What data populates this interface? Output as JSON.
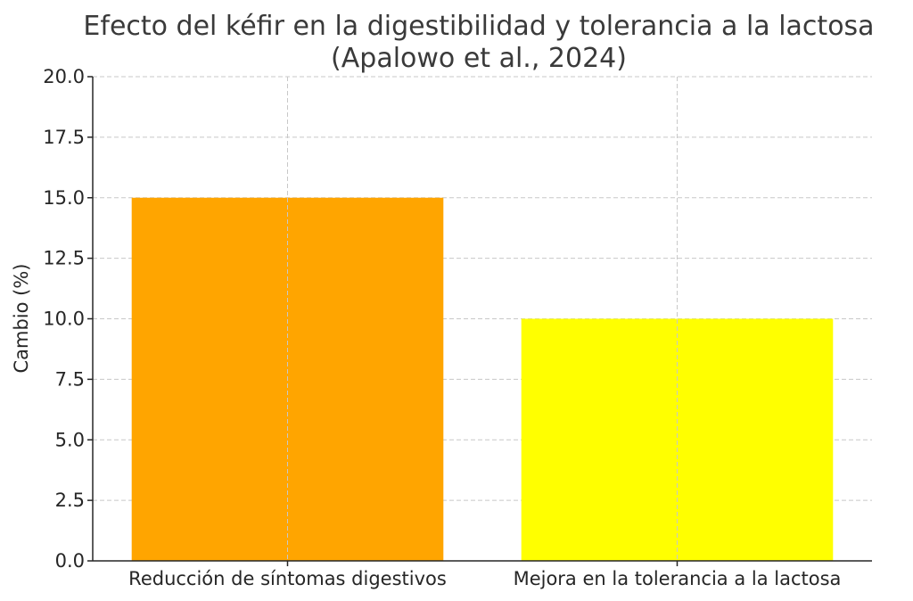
{
  "chart_data": {
    "type": "bar",
    "title": "Efecto del kéfir en la digestibilidad y tolerancia a la lactosa",
    "subtitle": "(Apalowo et al., 2024)",
    "xlabel": "",
    "ylabel": "Cambio (%)",
    "categories": [
      "Reducción de síntomas digestivos",
      "Mejora en la tolerancia a la lactosa"
    ],
    "values": [
      15,
      10
    ],
    "colors": [
      "#FFA500",
      "#FFFF00"
    ],
    "ylim": [
      0,
      20
    ],
    "yticks": [
      0.0,
      2.5,
      5.0,
      7.5,
      10.0,
      12.5,
      15.0,
      17.5,
      20.0
    ],
    "ytick_labels": [
      "0.0",
      "2.5",
      "5.0",
      "7.5",
      "10.0",
      "12.5",
      "15.0",
      "17.5",
      "20.0"
    ],
    "grid": true,
    "grid_style": "dashed"
  }
}
